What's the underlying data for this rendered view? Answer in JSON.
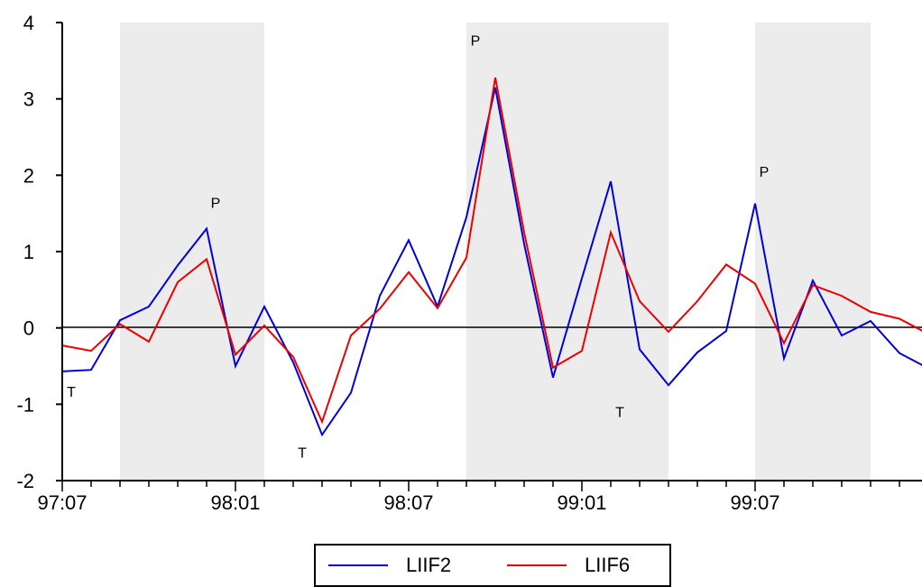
{
  "chart_data": {
    "type": "line",
    "x": [
      "97:07",
      "97:08",
      "97:09",
      "97:10",
      "97:11",
      "97:12",
      "98:01",
      "98:02",
      "98:03",
      "98:04",
      "98:05",
      "98:06",
      "98:07",
      "98:08",
      "98:09",
      "98:10",
      "98:11",
      "98:12",
      "99:01",
      "99:02",
      "99:03",
      "99:04",
      "99:05",
      "99:06",
      "99:07",
      "99:08",
      "99:09",
      "99:10",
      "99:11",
      "99:12",
      "00:01"
    ],
    "x_tick_labels": [
      "97:07",
      "98:01",
      "98:07",
      "99:01",
      "99:07"
    ],
    "y_ticks": [
      "-2",
      "-1",
      "0",
      "1",
      "2",
      "3",
      "4"
    ],
    "ylim": [
      -2,
      4
    ],
    "grid": false,
    "zero_line": true,
    "legend_position": "bottom-center",
    "shaded_periods": [
      {
        "from": "97:09",
        "to": "98:02"
      },
      {
        "from": "98:09",
        "to": "99:04"
      },
      {
        "from": "99:07",
        "to": "99:11"
      }
    ],
    "series": [
      {
        "name": "LIIF2",
        "color": "#0000dd",
        "values": [
          -0.57,
          -0.55,
          0.1,
          0.28,
          0.82,
          1.3,
          -0.5,
          0.28,
          -0.45,
          -1.4,
          -0.85,
          0.42,
          1.15,
          0.28,
          1.45,
          3.15,
          1.1,
          -0.65,
          0.65,
          1.92,
          -0.28,
          -0.75,
          -0.32,
          -0.04,
          1.63,
          -0.4,
          0.62,
          -0.1,
          0.09,
          -0.33,
          -0.53
        ]
      },
      {
        "name": "LIIF6",
        "color": "#ee0000",
        "values": [
          -0.23,
          -0.3,
          0.05,
          -0.18,
          0.6,
          0.9,
          -0.35,
          0.03,
          -0.38,
          -1.23,
          -0.1,
          0.25,
          0.73,
          0.26,
          0.92,
          3.28,
          1.25,
          -0.52,
          -0.3,
          1.25,
          0.35,
          -0.05,
          0.35,
          0.83,
          0.58,
          -0.2,
          0.56,
          0.42,
          0.21,
          0.12,
          -0.08
        ]
      }
    ],
    "annotations": [
      {
        "text": "T",
        "x": "97:07",
        "y": -0.9
      },
      {
        "text": "P",
        "x": "97:12",
        "y": 1.57
      },
      {
        "text": "T",
        "x": "98:03",
        "y": -1.7
      },
      {
        "text": "P",
        "x": "98:09",
        "y": 3.7
      },
      {
        "text": "T",
        "x": "99:02",
        "y": -1.17
      },
      {
        "text": "P",
        "x": "99:07",
        "y": 1.98
      }
    ]
  }
}
